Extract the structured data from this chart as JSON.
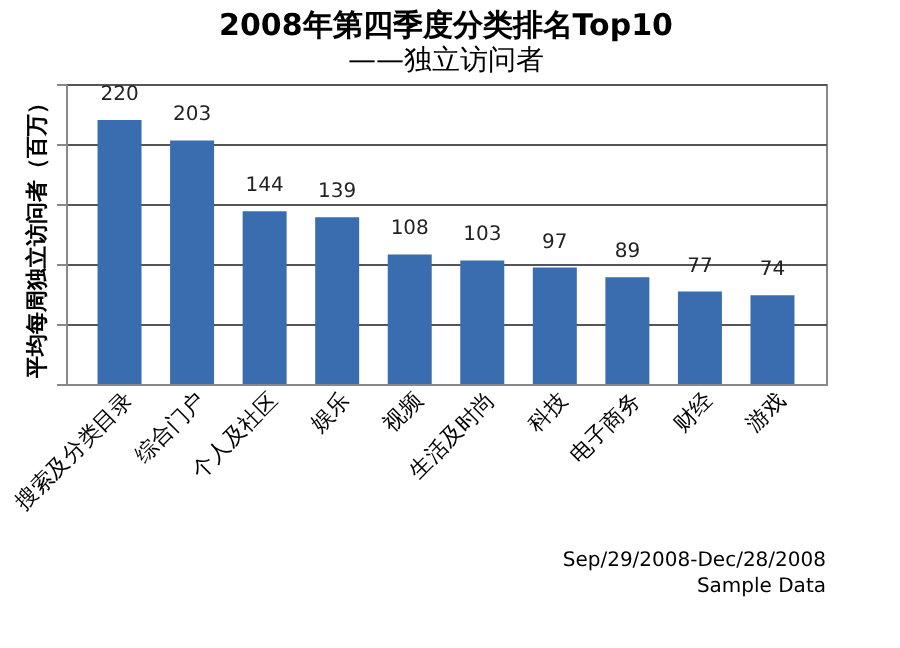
{
  "chart_data": {
    "type": "bar",
    "title": "2008年第四季度分类排名Top10",
    "subtitle": "——独立访问者",
    "ylabel": "平均每周独立访问者（百万）",
    "categories": [
      "搜索及分类目录",
      "综合门户",
      "个人及社区",
      "娱乐",
      "视频",
      "生活及时尚",
      "科技",
      "电子商务",
      "财经",
      "游戏"
    ],
    "values": [
      220,
      203,
      144,
      139,
      108,
      103,
      97,
      89,
      77,
      74
    ],
    "color": "#3a6db0",
    "ylim": [
      0,
      250
    ],
    "yticks": [
      {
        "value": 0,
        "label": null
      },
      {
        "value": 50,
        "label": null
      },
      {
        "value": 100,
        "label": null
      },
      {
        "value": 150,
        "label": null
      },
      {
        "value": 200,
        "label": null
      },
      {
        "value": 250,
        "label": null
      }
    ],
    "tick_labels": "x",
    "grid": "y",
    "data_labels": true,
    "annotations": [
      "Sep/29/2008-Dec/28/2008",
      "Sample Data"
    ]
  }
}
